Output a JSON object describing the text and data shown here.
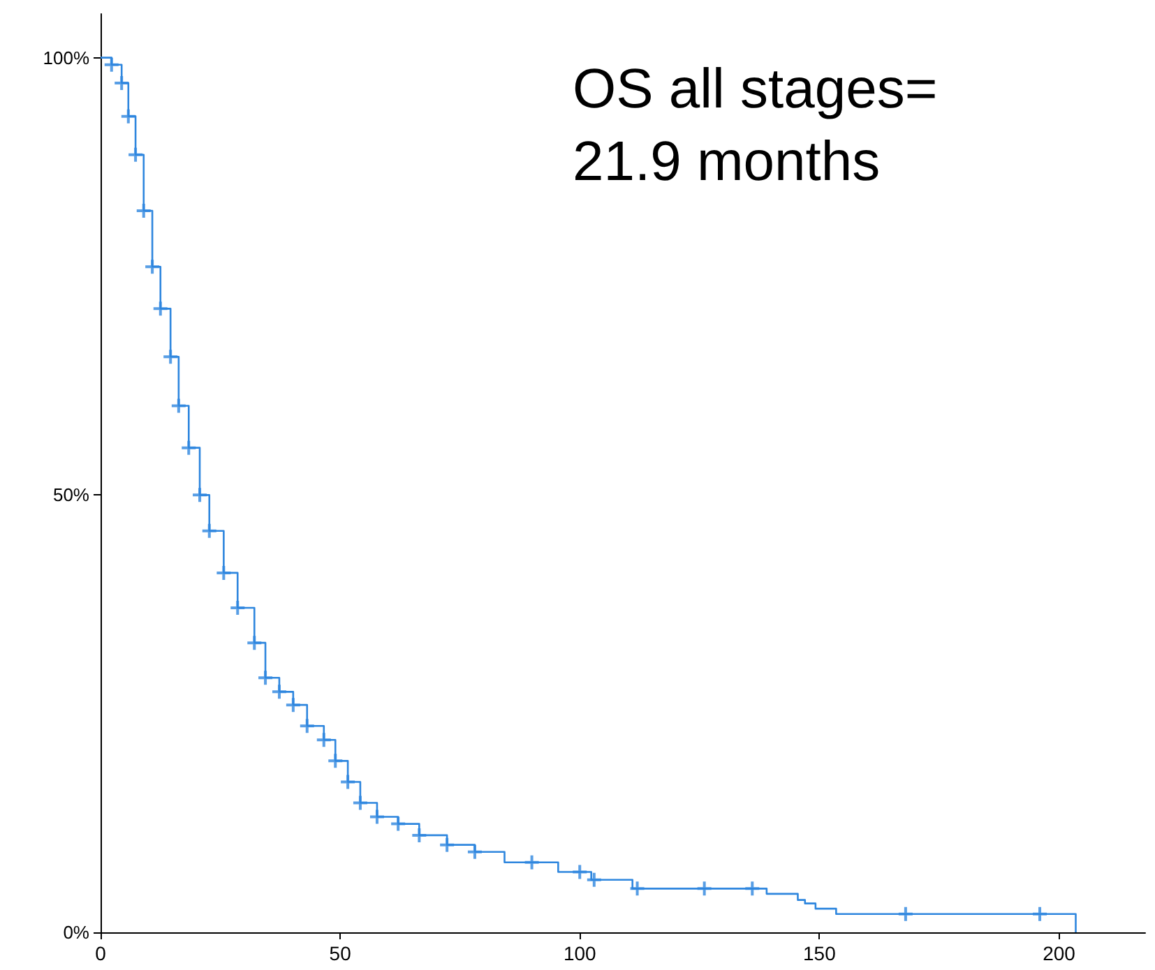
{
  "chart_data": {
    "type": "step",
    "annotations": [
      "OS all stages= 21.9 months"
    ],
    "xlim": [
      0,
      218
    ],
    "xticks": [
      0,
      50,
      100,
      150,
      200
    ],
    "ylim": [
      0,
      105
    ],
    "yticks": [
      {
        "value": 0,
        "label": "0%"
      },
      {
        "value": 50,
        "label": "50%"
      },
      {
        "value": 100,
        "label": "100%"
      }
    ],
    "grid": false,
    "series": [
      {
        "color": "#2e86de",
        "marker": "none",
        "x": [
          0,
          2.3,
          4.4,
          5.8,
          7.3,
          9,
          10.8,
          12.5,
          14.6,
          16.3,
          18.4,
          20.7,
          22.7,
          25.7,
          28.6,
          32.1,
          34.4,
          37.3,
          40.2,
          43.1,
          46.6,
          49,
          51.6,
          54.2,
          57.7,
          62.1,
          66.5,
          72.3,
          78.1,
          84.3,
          95.5,
          102.4,
          111,
          139,
          145.5,
          147,
          149.2,
          153.5,
          203.5
        ],
        "values": [
          100,
          99.2,
          97.1,
          93.3,
          88.9,
          82.5,
          76.1,
          71.3,
          65.8,
          60.2,
          55.4,
          50,
          45.9,
          41.1,
          37.1,
          33.1,
          29.1,
          27.5,
          26,
          23.6,
          22,
          19.6,
          17.2,
          14.8,
          13.2,
          12.4,
          11.1,
          10,
          9.2,
          8,
          6.9,
          6,
          5,
          4.4,
          3.7,
          3.3,
          2.7,
          2.1,
          0
        ]
      },
      {
        "type": "scatter",
        "color": "#2e86de",
        "marker": "cross",
        "x": [
          2.3,
          4.4,
          5.8,
          7.3,
          9,
          10.8,
          12.5,
          14.6,
          16.3,
          18.4,
          20.7,
          22.7,
          25.7,
          28.6,
          32.1,
          34.4,
          37.3,
          40.2,
          43.1,
          46.6,
          49,
          51.6,
          54.2,
          57.7,
          62.1,
          66.5,
          72.3,
          78.1,
          90,
          100,
          103,
          112,
          126,
          136,
          168,
          196
        ],
        "values": [
          99.2,
          97.1,
          93.3,
          88.9,
          82.5,
          76.1,
          71.3,
          65.8,
          60.2,
          55.4,
          50,
          45.9,
          41.1,
          37.1,
          33.1,
          29.1,
          27.5,
          26,
          23.6,
          22,
          19.6,
          17.2,
          14.8,
          13.2,
          12.4,
          11.1,
          10,
          9.2,
          8,
          6.9,
          6,
          5,
          5,
          5,
          2.1,
          2.1
        ]
      }
    ]
  }
}
